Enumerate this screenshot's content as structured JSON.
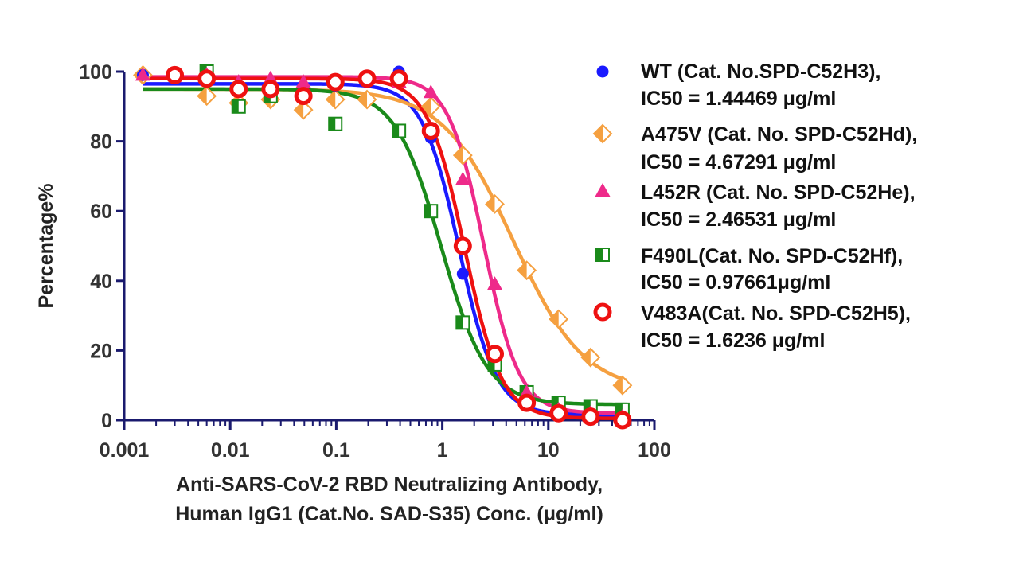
{
  "chart_data": {
    "type": "scatter",
    "x_scale": "log",
    "xlim": [
      0.001,
      100
    ],
    "ylim": [
      0,
      100
    ],
    "x_ticks": [
      {
        "value": 0.001,
        "label": "0.001"
      },
      {
        "value": 0.01,
        "label": "0.01"
      },
      {
        "value": 0.1,
        "label": "0.1"
      },
      {
        "value": 1,
        "label": "1"
      },
      {
        "value": 10,
        "label": "10"
      },
      {
        "value": 100,
        "label": "100"
      }
    ],
    "y_ticks": [
      {
        "value": 0,
        "label": "0"
      },
      {
        "value": 20,
        "label": "20"
      },
      {
        "value": 40,
        "label": "40"
      },
      {
        "value": 60,
        "label": "60"
      },
      {
        "value": 80,
        "label": "80"
      },
      {
        "value": 100,
        "label": "100"
      }
    ],
    "ylabel": "Percentage%",
    "xlabel_lines": [
      "Anti-SARS-CoV-2 RBD Neutralizing Antibody,",
      "Human IgG1 (Cat.No. SAD-S35) Conc. (μg/ml)"
    ],
    "legend_position": "right",
    "series": [
      {
        "name": "WT (Cat. No.SPD-C52H3),",
        "ic50_label": "IC50 = 1.44469 μg/ml",
        "marker": "circle",
        "color": "#1a1aff",
        "fit": {
          "top": 96.5,
          "bottom": 1.5,
          "ic50": 1.44469,
          "hill": 2.5
        },
        "points": [
          [
            0.0015,
            99
          ],
          [
            0.003,
            99
          ],
          [
            0.006,
            98
          ],
          [
            0.012,
            96
          ],
          [
            0.024,
            95
          ],
          [
            0.049,
            93
          ],
          [
            0.098,
            96
          ],
          [
            0.195,
            97
          ],
          [
            0.39,
            100
          ],
          [
            0.78,
            81
          ],
          [
            1.56,
            42
          ],
          [
            3.125,
            19
          ],
          [
            6.25,
            5
          ],
          [
            12.5,
            2
          ],
          [
            25,
            1
          ],
          [
            50,
            1
          ]
        ]
      },
      {
        "name": "A475V (Cat. No. SPD-C52Hd),",
        "ic50_label": "IC50 = 4.67291 μg/ml",
        "marker": "diamond",
        "color": "#f5a040",
        "fit": {
          "top": 95,
          "bottom": 8,
          "ic50": 4.67291,
          "hill": 1.3
        },
        "points": [
          [
            0.0015,
            99
          ],
          [
            0.006,
            93
          ],
          [
            0.012,
            91
          ],
          [
            0.024,
            92
          ],
          [
            0.049,
            89
          ],
          [
            0.098,
            92
          ],
          [
            0.195,
            92
          ],
          [
            0.78,
            90
          ],
          [
            1.56,
            76
          ],
          [
            3.125,
            62
          ],
          [
            6.25,
            43
          ],
          [
            12.5,
            29
          ],
          [
            25,
            18
          ],
          [
            50,
            10
          ]
        ]
      },
      {
        "name": "L452R (Cat. No. SPD-C52He),",
        "ic50_label": "IC50 = 2.46531 μg/ml",
        "marker": "triangle",
        "color": "#ee2a8a",
        "fit": {
          "top": 98.5,
          "bottom": 2,
          "ic50": 2.46531,
          "hill": 2.6
        },
        "points": [
          [
            0.0015,
            99
          ],
          [
            0.003,
            99
          ],
          [
            0.006,
            99
          ],
          [
            0.012,
            97
          ],
          [
            0.024,
            98
          ],
          [
            0.049,
            97
          ],
          [
            0.098,
            97
          ],
          [
            0.195,
            98
          ],
          [
            0.39,
            97
          ],
          [
            0.78,
            94
          ],
          [
            1.56,
            69
          ],
          [
            3.125,
            39
          ],
          [
            6.25,
            8
          ],
          [
            12.5,
            3
          ],
          [
            25,
            2
          ],
          [
            50,
            1
          ]
        ]
      },
      {
        "name": "F490L(Cat. No. SPD-C52Hf),",
        "ic50_label": "IC50 = 0.97661μg/ml",
        "marker": "half-square",
        "color": "#1a8a1a",
        "fit": {
          "top": 95,
          "bottom": 4.5,
          "ic50": 0.97661,
          "hill": 2.0
        },
        "points": [
          [
            0.006,
            100
          ],
          [
            0.012,
            90
          ],
          [
            0.024,
            93
          ],
          [
            0.098,
            85
          ],
          [
            0.39,
            83
          ],
          [
            0.78,
            60
          ],
          [
            1.56,
            28
          ],
          [
            3.125,
            16
          ],
          [
            6.25,
            8
          ],
          [
            12.5,
            5
          ],
          [
            25,
            4
          ],
          [
            50,
            3
          ]
        ]
      },
      {
        "name": "V483A(Cat. No. SPD-C52H5),",
        "ic50_label": "IC50 = 1.6236 μg/ml",
        "marker": "ring",
        "color": "#ee1111",
        "fit": {
          "top": 98,
          "bottom": 0.5,
          "ic50": 1.6236,
          "hill": 2.5
        },
        "points": [
          [
            0.003,
            99
          ],
          [
            0.006,
            98
          ],
          [
            0.012,
            95
          ],
          [
            0.024,
            95
          ],
          [
            0.049,
            93
          ],
          [
            0.098,
            97
          ],
          [
            0.195,
            98
          ],
          [
            0.39,
            98
          ],
          [
            0.78,
            83
          ],
          [
            1.56,
            50
          ],
          [
            3.125,
            19
          ],
          [
            6.25,
            5
          ],
          [
            12.5,
            2
          ],
          [
            25,
            1
          ],
          [
            50,
            0
          ]
        ]
      }
    ]
  }
}
